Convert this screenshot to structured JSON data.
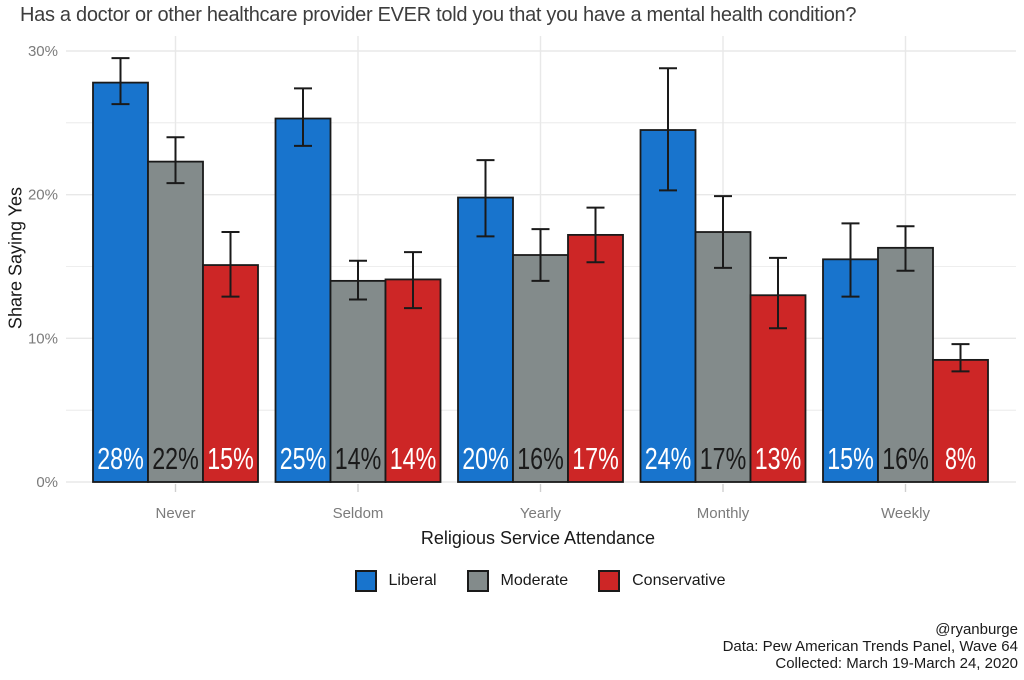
{
  "chart_data": {
    "type": "bar",
    "title": "Has a doctor or other healthcare provider EVER told you that you have a mental health condition?",
    "xlabel": "Religious Service Attendance",
    "ylabel": "Share Saying Yes",
    "ylim": [
      0,
      30.8
    ],
    "yticks": [
      0,
      10,
      20,
      30
    ],
    "ytick_labels": [
      "0%",
      "10%",
      "20%",
      "30%"
    ],
    "minor_yticks": [
      5,
      15,
      25
    ],
    "grid": "light gray horizontal lines every 5%, vertical line at each category center, white background",
    "legend_position": "bottom center",
    "categories": [
      "Never",
      "Seldom",
      "Yearly",
      "Monthly",
      "Weekly"
    ],
    "series": [
      {
        "name": "Liberal",
        "color": "#1874CD",
        "label_color": "#ffffff",
        "values": [
          27.8,
          25.3,
          19.8,
          24.5,
          15.5
        ],
        "labels": [
          "28%",
          "25%",
          "20%",
          "24%",
          "15%"
        ],
        "ci_low": [
          26.3,
          23.4,
          17.1,
          20.3,
          12.9
        ],
        "ci_high": [
          29.5,
          27.4,
          22.4,
          28.8,
          18.0
        ]
      },
      {
        "name": "Moderate",
        "color": "#838B8B",
        "label_color": "#1a1a1a",
        "values": [
          22.3,
          14.0,
          15.8,
          17.4,
          16.3
        ],
        "labels": [
          "22%",
          "14%",
          "16%",
          "17%",
          "16%"
        ],
        "ci_low": [
          20.8,
          12.7,
          14.0,
          14.9,
          14.7
        ],
        "ci_high": [
          24.0,
          15.4,
          17.6,
          19.9,
          17.8
        ]
      },
      {
        "name": "Conservative",
        "color": "#CD2626",
        "label_color": "#ffffff",
        "values": [
          15.1,
          14.1,
          17.2,
          13.0,
          8.5
        ],
        "labels": [
          "15%",
          "14%",
          "17%",
          "13%",
          "8%"
        ],
        "ci_low": [
          12.9,
          12.1,
          15.3,
          10.7,
          7.7
        ],
        "ci_high": [
          17.4,
          16.0,
          19.1,
          15.6,
          9.6
        ]
      }
    ],
    "style": {
      "bar_outline": "#1a1a1a",
      "errorbar_color": "#1a1a1a",
      "gridline_color": "#e8e8e8",
      "tick_color": "#cfcfcf",
      "axis_text_color": "#7b7b7b",
      "title_color": "#3d3d3d"
    }
  },
  "credits": {
    "line1": "@ryanburge",
    "line2": "Data: Pew American Trends Panel, Wave 64",
    "line3": "Collected: March 19-March 24, 2020"
  }
}
